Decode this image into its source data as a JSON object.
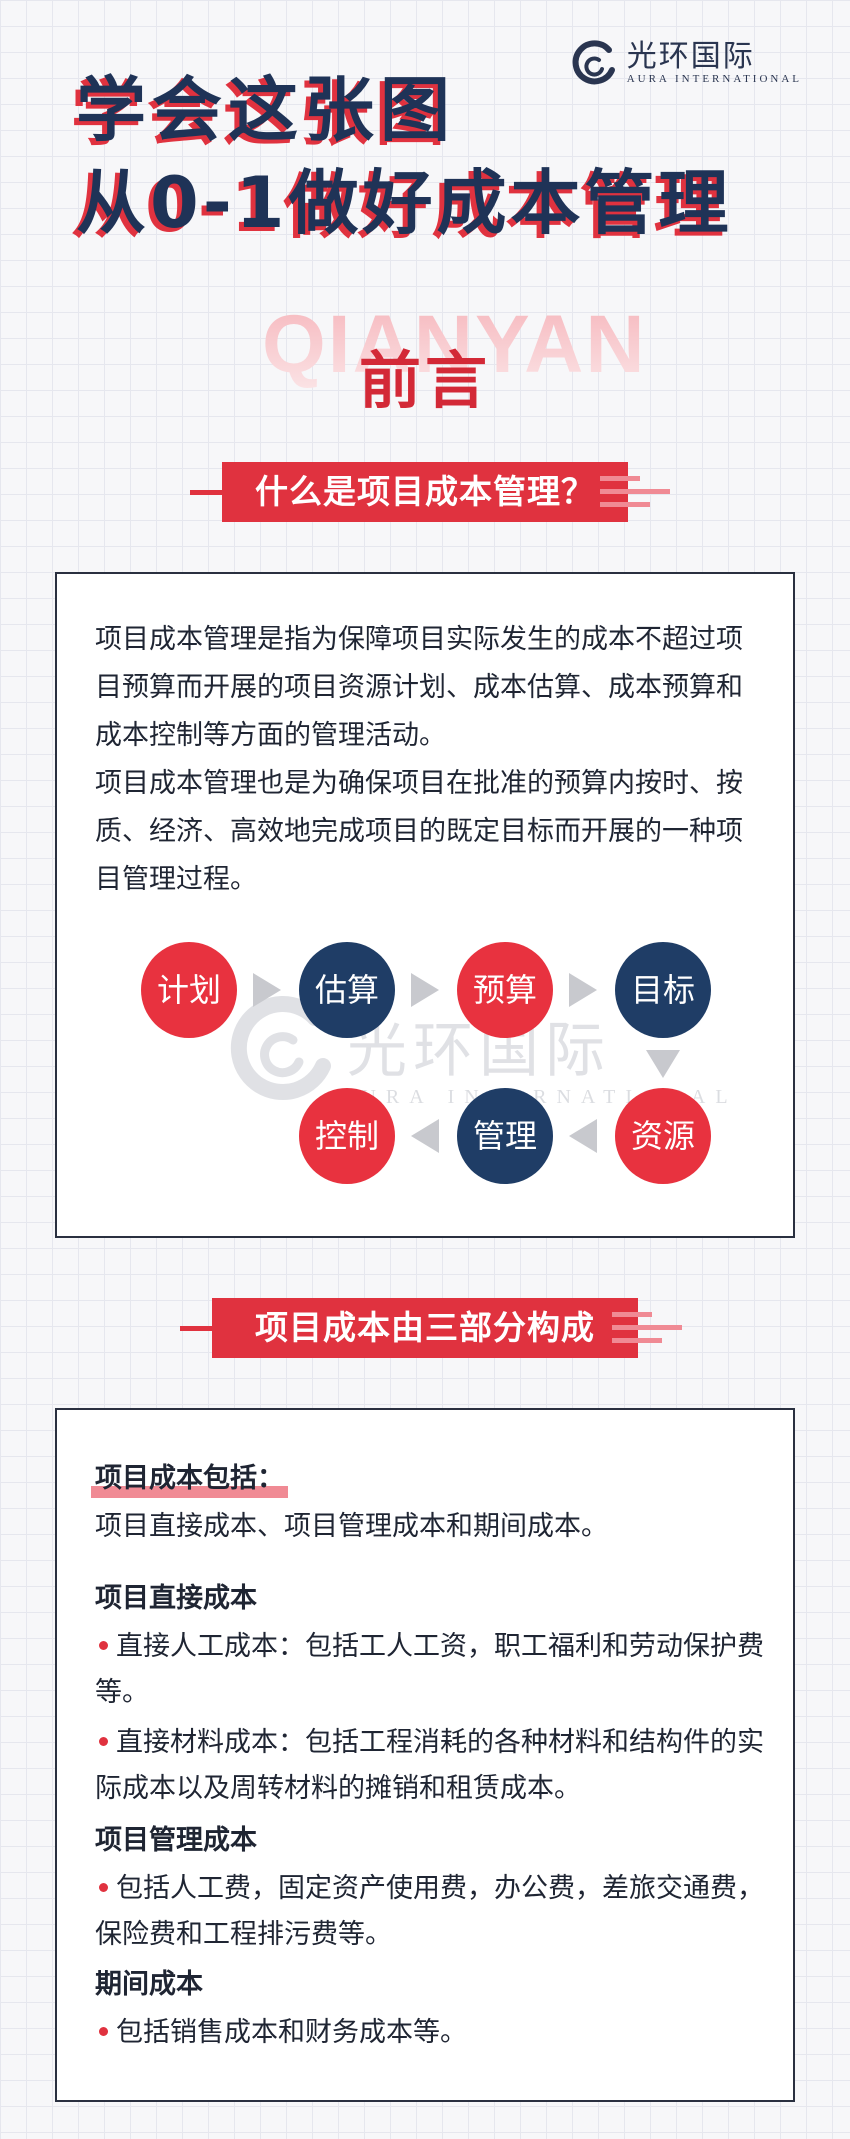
{
  "logo": {
    "cn": "光环国际",
    "en": "AURA INTERNATIONAL"
  },
  "title": {
    "line1": "学会这张图",
    "line2": "从0-1做好成本管理"
  },
  "preface": {
    "bg": "QIANYAN",
    "label": "前言"
  },
  "section1": {
    "heading": "什么是项目成本管理？",
    "para": "项目成本管理是指为保障项目实际发生的成本不超过项目预算而开展的项目资源计划、成本估算、成本预算和成本控制等方面的管理活动。",
    "para2": "项目成本管理也是为确保项目在批准的预算内按时、按质、经济、高效地完成项目的既定目标而开展的一种项目管理过程。",
    "flow": [
      "计划",
      "估算",
      "预算",
      "目标",
      "资源",
      "管理",
      "控制"
    ]
  },
  "section2": {
    "heading": "项目成本由三部分构成",
    "include_title": "项目成本包括：",
    "include_text": "项目直接成本、项目管理成本和期间成本。",
    "direct_title": "项目直接成本",
    "direct_item1": "直接人工成本：包括工人工资，职工福利和劳动保护费等。",
    "direct_item2": "直接材料成本：包括工程消耗的各种材料和结构件的实际成本以及周转材料的摊销和租赁成本。",
    "mgmt_title": "项目管理成本",
    "mgmt_item": "包括人工费，固定资产使用费，办公费，差旅交通费，保险费和工程排污费等。",
    "period_title": "期间成本",
    "period_item": "包括销售成本和财务成本等。"
  },
  "colors": {
    "red": "#e0323f",
    "navy": "#1f3d66",
    "title": "#1f3357"
  }
}
